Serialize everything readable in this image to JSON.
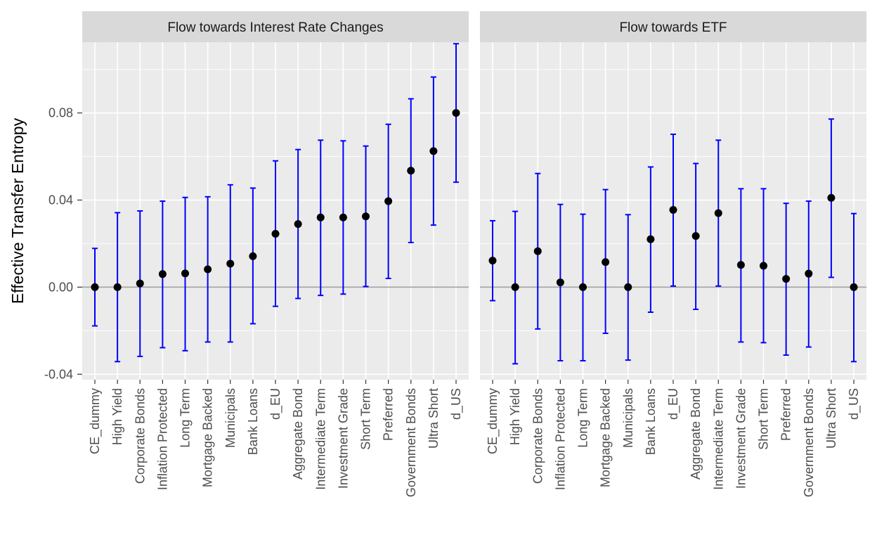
{
  "chart_data": {
    "type": "scatter",
    "ylabel": "Effective Transfer Entropy",
    "xlabel": "",
    "ylim": [
      -0.0425,
      0.1125
    ],
    "y_ticks": [
      -0.04,
      0.0,
      0.04,
      0.08
    ],
    "y_tick_labels": [
      "-0.04",
      "0.00",
      "0.04",
      "0.08"
    ],
    "grid": true,
    "zero_reference_line": true,
    "point_color": "#000000",
    "errorbar_color": "#0000ff",
    "panel_background": "#ebebeb",
    "strip_background": "#d9d9d9",
    "panels": [
      {
        "title": "Flow towards Interest Rate Changes",
        "categories": [
          "CE_dummy",
          "High Yield",
          "Corporate Bonds",
          "Inflation Protected",
          "Long Term",
          "Mortgage Backed",
          "Municipals",
          "Bank Loans",
          "d_EU",
          "Aggregate Bond",
          "Intermediate Term",
          "Investment Grade",
          "Short Term",
          "Preferred",
          "Government Bonds",
          "Ultra Short",
          "d_US"
        ],
        "values": [
          0.0,
          0.0,
          0.0017,
          0.006,
          0.0063,
          0.0082,
          0.0108,
          0.0142,
          0.0245,
          0.029,
          0.032,
          0.032,
          0.0325,
          0.0395,
          0.0535,
          0.0625,
          0.08
        ],
        "lower": [
          -0.0178,
          -0.0342,
          -0.0318,
          -0.0278,
          -0.0292,
          -0.0252,
          -0.0252,
          -0.0168,
          -0.0088,
          -0.0052,
          -0.0038,
          -0.0032,
          0.0003,
          0.004,
          0.0205,
          0.0285,
          0.0482
        ],
        "upper": [
          0.0178,
          0.0342,
          0.035,
          0.0395,
          0.0412,
          0.0415,
          0.047,
          0.0455,
          0.058,
          0.0632,
          0.0675,
          0.0672,
          0.0648,
          0.0748,
          0.0865,
          0.0965,
          0.1118
        ]
      },
      {
        "title": "Flow towards ETF",
        "categories": [
          "CE_dummy",
          "High Yield",
          "Corporate Bonds",
          "Inflation Protected",
          "Long Term",
          "Mortgage Backed",
          "Municipals",
          "Bank Loans",
          "d_EU",
          "Aggregate Bond",
          "Intermediate Term",
          "Investment Grade",
          "Short Term",
          "Preferred",
          "Government Bonds",
          "Ultra Short",
          "d_US"
        ],
        "values": [
          0.0122,
          0.0,
          0.0165,
          0.0022,
          0.0,
          0.0115,
          0.0,
          0.022,
          0.0355,
          0.0235,
          0.034,
          0.0102,
          0.0098,
          0.0038,
          0.0062,
          0.041,
          0.0
        ],
        "lower": [
          -0.0062,
          -0.0352,
          -0.0192,
          -0.0338,
          -0.0338,
          -0.0212,
          -0.0335,
          -0.0115,
          0.0005,
          -0.0102,
          0.0005,
          -0.0252,
          -0.0255,
          -0.0312,
          -0.0275,
          0.0045,
          -0.0342
        ],
        "upper": [
          0.0305,
          0.0348,
          0.0522,
          0.038,
          0.0335,
          0.0448,
          0.0333,
          0.0552,
          0.0702,
          0.0568,
          0.0675,
          0.0452,
          0.0452,
          0.0385,
          0.0395,
          0.0772,
          0.0338
        ]
      }
    ]
  }
}
